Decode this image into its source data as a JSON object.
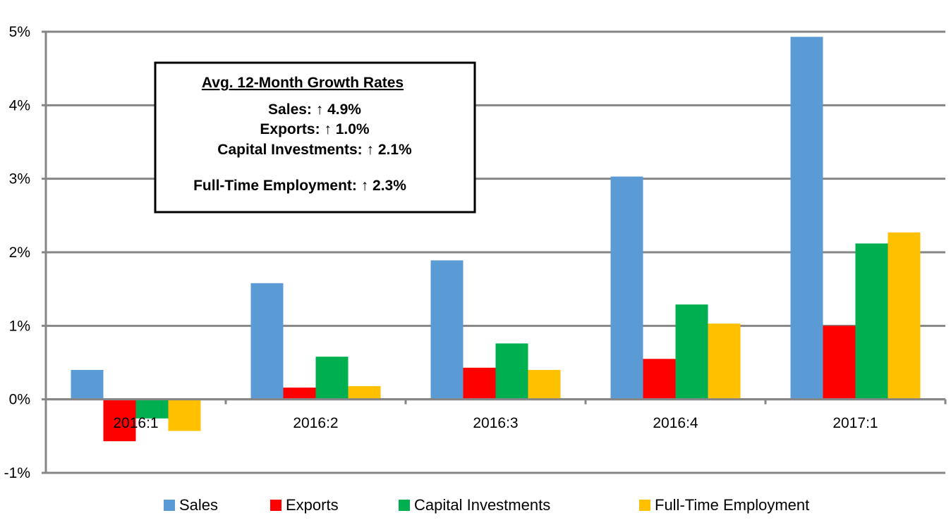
{
  "chart_data": {
    "type": "bar",
    "categories": [
      "2016:1",
      "2016:2",
      "2016:3",
      "2016:4",
      "2017:1"
    ],
    "series": [
      {
        "name": "Sales",
        "color": "#5B9BD5",
        "values": [
          0.4,
          1.58,
          1.89,
          3.03,
          4.93
        ]
      },
      {
        "name": "Exports",
        "color": "#FF0000",
        "values": [
          -0.57,
          0.16,
          0.43,
          0.55,
          1.0
        ]
      },
      {
        "name": "Capital Investments",
        "color": "#00B050",
        "values": [
          -0.26,
          0.58,
          0.76,
          1.29,
          2.12
        ]
      },
      {
        "name": "Full-Time Employment",
        "color": "#FFC000",
        "values": [
          -0.43,
          0.18,
          0.4,
          1.03,
          2.27
        ]
      }
    ],
    "ylim": [
      -1,
      5
    ],
    "yticks": [
      -1,
      0,
      1,
      2,
      3,
      4,
      5
    ],
    "ytick_labels": [
      "-1%",
      "0%",
      "1%",
      "2%",
      "3%",
      "4%",
      "5%"
    ],
    "grid": true,
    "legend_position": "bottom",
    "annotation": {
      "title": "Avg. 12-Month Growth Rates",
      "lines": [
        "Sales: ↑ 4.9%",
        "Exports: ↑ 1.0%",
        "Capital Investments: ↑ 2.1%",
        "Full-Time Employment: ↑ 2.3%"
      ]
    }
  }
}
